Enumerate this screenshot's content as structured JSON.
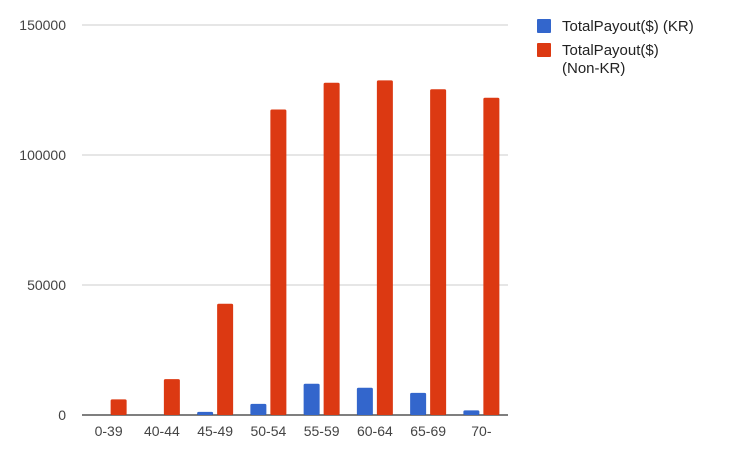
{
  "chart_data": {
    "type": "bar",
    "categories": [
      "0-39",
      "40-44",
      "45-49",
      "50-54",
      "55-59",
      "60-64",
      "65-69",
      "70-"
    ],
    "series": [
      {
        "name": "TotalPayout($) (KR)",
        "color": "#3366cc",
        "values": [
          0,
          0,
          1200,
          4300,
          12000,
          10500,
          8500,
          1800
        ]
      },
      {
        "name": "TotalPayout($) (Non-KR)",
        "color": "#dc3912",
        "values": [
          6000,
          13800,
          42800,
          117500,
          127800,
          128700,
          125300,
          122000
        ]
      }
    ],
    "yticks": [
      "0",
      "50000",
      "100000",
      "150000"
    ],
    "ylim": [
      0,
      150000
    ],
    "grid": true,
    "legend_position": "right",
    "legend_lines": [
      [
        "TotalPayout($) (KR)"
      ],
      [
        "TotalPayout($)",
        "(Non-KR)"
      ]
    ]
  }
}
